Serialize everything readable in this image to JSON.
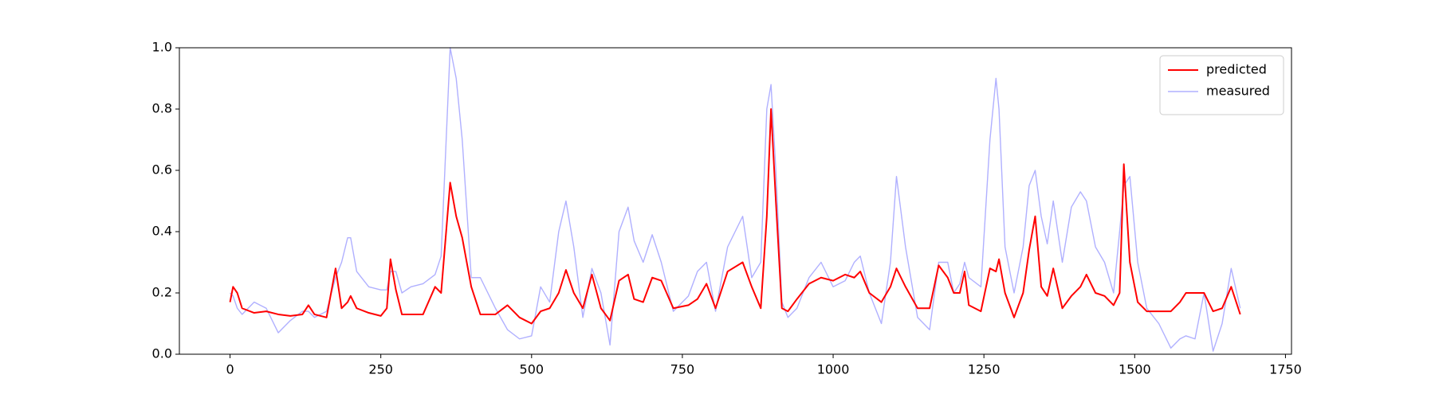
{
  "chart_data": {
    "type": "line",
    "x": [
      0,
      5,
      12,
      20,
      40,
      60,
      80,
      100,
      120,
      130,
      140,
      160,
      175,
      185,
      195,
      200,
      210,
      230,
      250,
      260,
      266,
      275,
      285,
      300,
      320,
      340,
      350,
      365,
      375,
      385,
      400,
      415,
      440,
      460,
      480,
      500,
      515,
      530,
      545,
      557,
      570,
      585,
      600,
      615,
      630,
      645,
      660,
      670,
      685,
      700,
      715,
      735,
      760,
      775,
      790,
      805,
      825,
      850,
      865,
      880,
      890,
      897,
      905,
      915,
      925,
      940,
      960,
      980,
      1000,
      1020,
      1035,
      1045,
      1060,
      1080,
      1095,
      1105,
      1120,
      1140,
      1160,
      1175,
      1190,
      1200,
      1210,
      1218,
      1225,
      1245,
      1260,
      1270,
      1275,
      1285,
      1300,
      1315,
      1325,
      1335,
      1345,
      1355,
      1365,
      1380,
      1395,
      1410,
      1420,
      1435,
      1450,
      1465,
      1475,
      1482,
      1492,
      1505,
      1520,
      1540,
      1560,
      1575,
      1585,
      1600,
      1615,
      1630,
      1645,
      1660,
      1675
    ],
    "series": [
      {
        "name": "predicted",
        "color": "#ff0000",
        "values": [
          0.17,
          0.22,
          0.2,
          0.15,
          0.135,
          0.14,
          0.13,
          0.125,
          0.13,
          0.16,
          0.13,
          0.12,
          0.28,
          0.15,
          0.17,
          0.19,
          0.15,
          0.135,
          0.125,
          0.15,
          0.31,
          0.21,
          0.13,
          0.13,
          0.13,
          0.22,
          0.2,
          0.56,
          0.45,
          0.38,
          0.22,
          0.13,
          0.13,
          0.16,
          0.12,
          0.1,
          0.14,
          0.15,
          0.2,
          0.275,
          0.2,
          0.15,
          0.26,
          0.15,
          0.11,
          0.24,
          0.26,
          0.18,
          0.17,
          0.25,
          0.24,
          0.15,
          0.16,
          0.18,
          0.23,
          0.15,
          0.27,
          0.3,
          0.22,
          0.15,
          0.45,
          0.8,
          0.5,
          0.15,
          0.14,
          0.18,
          0.23,
          0.25,
          0.24,
          0.26,
          0.25,
          0.27,
          0.2,
          0.17,
          0.22,
          0.28,
          0.22,
          0.15,
          0.15,
          0.29,
          0.25,
          0.2,
          0.2,
          0.27,
          0.16,
          0.14,
          0.28,
          0.27,
          0.31,
          0.2,
          0.12,
          0.2,
          0.34,
          0.45,
          0.22,
          0.19,
          0.28,
          0.15,
          0.19,
          0.22,
          0.26,
          0.2,
          0.19,
          0.16,
          0.2,
          0.62,
          0.3,
          0.17,
          0.14,
          0.14,
          0.14,
          0.17,
          0.2,
          0.2,
          0.2,
          0.14,
          0.15,
          0.22,
          0.13
        ]
      },
      {
        "name": "measured",
        "color": "#b0b0ff",
        "values": [
          0.2,
          0.19,
          0.15,
          0.13,
          0.17,
          0.15,
          0.07,
          0.11,
          0.14,
          0.14,
          0.12,
          0.14,
          0.25,
          0.3,
          0.38,
          0.38,
          0.27,
          0.22,
          0.21,
          0.21,
          0.27,
          0.27,
          0.2,
          0.22,
          0.23,
          0.26,
          0.32,
          1.0,
          0.9,
          0.7,
          0.25,
          0.25,
          0.15,
          0.08,
          0.05,
          0.06,
          0.22,
          0.17,
          0.4,
          0.5,
          0.35,
          0.12,
          0.28,
          0.2,
          0.03,
          0.4,
          0.48,
          0.37,
          0.3,
          0.39,
          0.3,
          0.14,
          0.19,
          0.27,
          0.3,
          0.14,
          0.35,
          0.45,
          0.25,
          0.3,
          0.8,
          0.88,
          0.6,
          0.17,
          0.12,
          0.15,
          0.25,
          0.3,
          0.22,
          0.24,
          0.3,
          0.32,
          0.2,
          0.1,
          0.3,
          0.58,
          0.35,
          0.12,
          0.08,
          0.3,
          0.3,
          0.2,
          0.23,
          0.3,
          0.25,
          0.22,
          0.7,
          0.9,
          0.8,
          0.35,
          0.2,
          0.35,
          0.55,
          0.6,
          0.45,
          0.36,
          0.5,
          0.3,
          0.48,
          0.53,
          0.5,
          0.35,
          0.3,
          0.2,
          0.4,
          0.55,
          0.58,
          0.3,
          0.15,
          0.1,
          0.02,
          0.05,
          0.06,
          0.05,
          0.2,
          0.01,
          0.1,
          0.28,
          0.15
        ]
      }
    ],
    "xlim": [
      -84,
      1760
    ],
    "ylim": [
      0,
      1
    ],
    "xticks": [
      0,
      250,
      500,
      750,
      1000,
      1250,
      1500,
      1750
    ],
    "yticks": [
      {
        "value": 0,
        "label": "0.0"
      },
      0.2,
      0.4,
      0.6,
      0.8,
      {
        "value": 1,
        "label": "1.0"
      }
    ],
    "legend": "upper right"
  }
}
